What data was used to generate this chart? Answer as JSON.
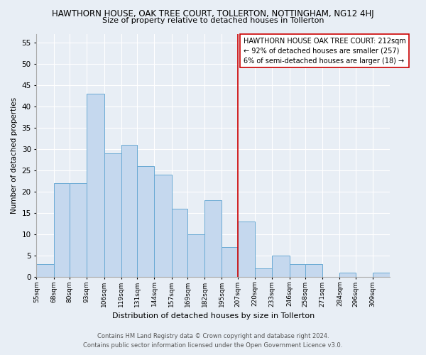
{
  "title": "HAWTHORN HOUSE, OAK TREE COURT, TOLLERTON, NOTTINGHAM, NG12 4HJ",
  "subtitle": "Size of property relative to detached houses in Tollerton",
  "xlabel": "Distribution of detached houses by size in Tollerton",
  "ylabel": "Number of detached properties",
  "bin_labels": [
    "55sqm",
    "68sqm",
    "80sqm",
    "93sqm",
    "106sqm",
    "119sqm",
    "131sqm",
    "144sqm",
    "157sqm",
    "169sqm",
    "182sqm",
    "195sqm",
    "207sqm",
    "220sqm",
    "233sqm",
    "246sqm",
    "258sqm",
    "271sqm",
    "284sqm",
    "296sqm",
    "309sqm"
  ],
  "bar_heights": [
    3,
    22,
    22,
    43,
    29,
    31,
    26,
    24,
    16,
    10,
    18,
    7,
    13,
    2,
    5,
    3,
    3,
    0,
    1,
    0,
    1
  ],
  "bar_color": "#c5d8ee",
  "bar_edge_color": "#6aaad4",
  "vline_x_index": 12,
  "vline_color": "#cc0000",
  "annotation_line1": "HAWTHORN HOUSE OAK TREE COURT: 212sqm",
  "annotation_line2": "← 92% of detached houses are smaller (257)",
  "annotation_line3": "6% of semi-detached houses are larger (18) →",
  "annotation_box_color": "#ffffff",
  "annotation_border_color": "#cc0000",
  "ylim": [
    0,
    57
  ],
  "yticks": [
    0,
    5,
    10,
    15,
    20,
    25,
    30,
    35,
    40,
    45,
    50,
    55
  ],
  "background_color": "#e8eef5",
  "plot_bg_color": "#e8eef5",
  "grid_color": "#ffffff",
  "footer_line1": "Contains HM Land Registry data © Crown copyright and database right 2024.",
  "footer_line2": "Contains public sector information licensed under the Open Government Licence v3.0.",
  "bin_edges": [
    55,
    68,
    80,
    93,
    106,
    119,
    131,
    144,
    157,
    169,
    182,
    195,
    207,
    220,
    233,
    246,
    258,
    271,
    284,
    296,
    309,
    322
  ]
}
